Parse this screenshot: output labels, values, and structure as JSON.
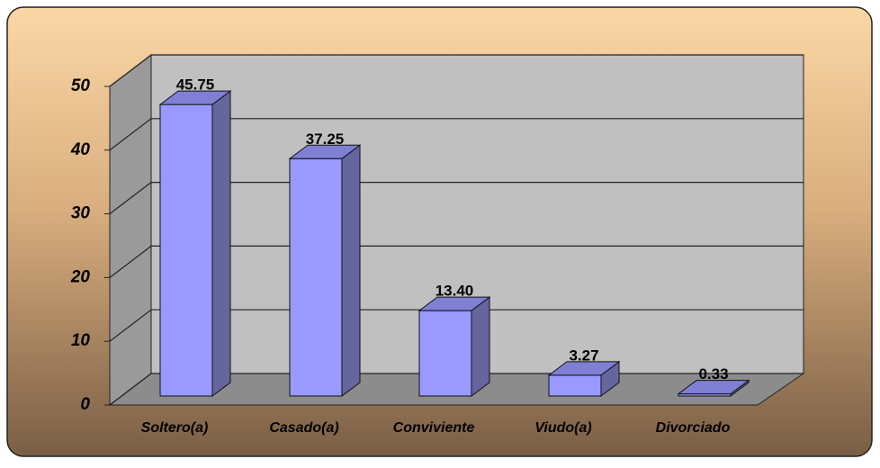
{
  "chart_data": {
    "type": "bar3d",
    "categories": [
      "Soltero(a)",
      "Casado(a)",
      "Conviviente",
      "Viudo(a)",
      "Divorciado"
    ],
    "values": [
      45.75,
      37.25,
      13.4,
      3.27,
      0.33
    ],
    "value_labels": [
      "45.75",
      "37.25",
      "13.40",
      "3.27",
      "0.33"
    ],
    "color": "#9999ff",
    "ylim": [
      0,
      50
    ],
    "yticks": [
      0,
      10,
      20,
      30,
      40,
      50
    ],
    "grid": true
  }
}
